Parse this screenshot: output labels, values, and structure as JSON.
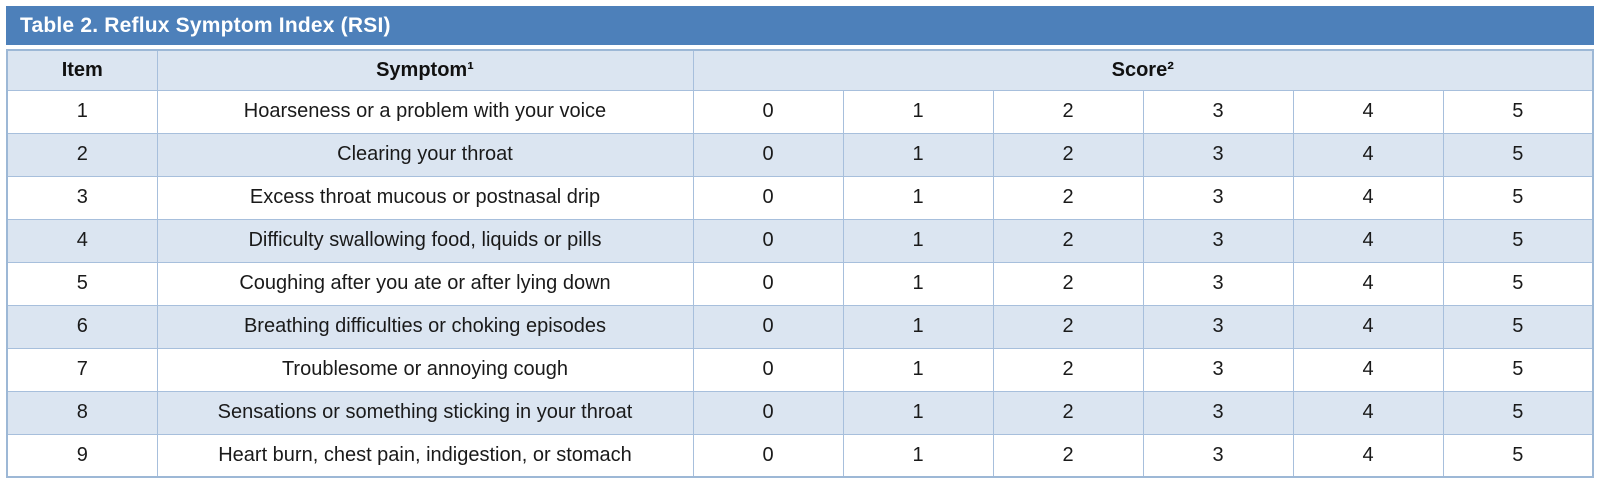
{
  "title": "Table 2. Reflux Symptom Index (RSI)",
  "header": {
    "item": "Item",
    "symptom": "Symptom¹",
    "score": "Score²"
  },
  "rows": [
    {
      "item": "1",
      "symptom": "Hoarseness or a problem with your voice",
      "scores": [
        "0",
        "1",
        "2",
        "3",
        "4",
        "5"
      ]
    },
    {
      "item": "2",
      "symptom": "Clearing your throat",
      "scores": [
        "0",
        "1",
        "2",
        "3",
        "4",
        "5"
      ]
    },
    {
      "item": "3",
      "symptom": "Excess throat mucous or postnasal drip",
      "scores": [
        "0",
        "1",
        "2",
        "3",
        "4",
        "5"
      ]
    },
    {
      "item": "4",
      "symptom": "Difficulty swallowing food, liquids or pills",
      "scores": [
        "0",
        "1",
        "2",
        "3",
        "4",
        "5"
      ]
    },
    {
      "item": "5",
      "symptom": "Coughing after you ate or after lying down",
      "scores": [
        "0",
        "1",
        "2",
        "3",
        "4",
        "5"
      ]
    },
    {
      "item": "6",
      "symptom": "Breathing difficulties or choking episodes",
      "scores": [
        "0",
        "1",
        "2",
        "3",
        "4",
        "5"
      ]
    },
    {
      "item": "7",
      "symptom": "Troublesome or annoying cough",
      "scores": [
        "0",
        "1",
        "2",
        "3",
        "4",
        "5"
      ]
    },
    {
      "item": "8",
      "symptom": "Sensations or something sticking in your throat",
      "scores": [
        "0",
        "1",
        "2",
        "3",
        "4",
        "5"
      ]
    },
    {
      "item": "9",
      "symptom": "Heart burn, chest pain, indigestion, or stomach",
      "scores": [
        "0",
        "1",
        "2",
        "3",
        "4",
        "5"
      ]
    }
  ],
  "colors": {
    "title_bar": "#4d80ba",
    "title_text": "#ffffff",
    "header_bg": "#dbe5f1",
    "alt_row_bg": "#dbe5f1",
    "white_row_bg": "#ffffff",
    "border": "#a7bfdc",
    "text": "#1a1a1a"
  }
}
